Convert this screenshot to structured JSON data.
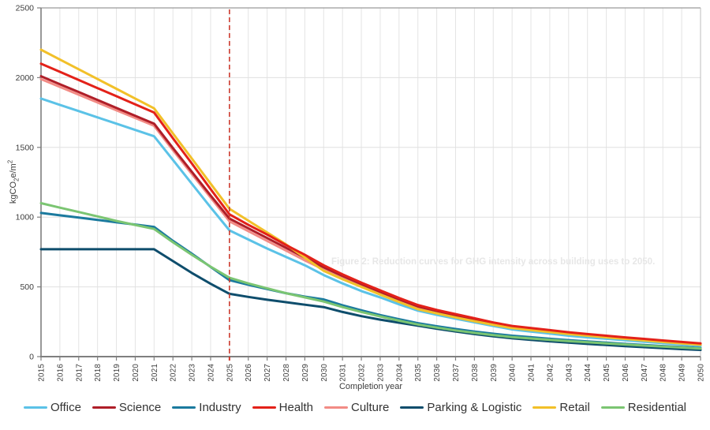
{
  "watermark": "Figure 2: Reduction curves for GHG intensity across building uses to 2050.",
  "chart_data": {
    "type": "line",
    "title": "",
    "xlabel": "Completion year",
    "ylabel": {
      "pre": "kgCO",
      "sub": "2",
      "mid": "e/m",
      "sup": "2"
    },
    "ylim": [
      0,
      2500
    ],
    "yticks": [
      0,
      500,
      1000,
      1500,
      2000,
      2500
    ],
    "grid": true,
    "legend_position": "bottom",
    "reference_line": {
      "x": 2025,
      "color": "#cc3a2d",
      "style": "dashed"
    },
    "axis_colors": {
      "spine": "#7f7f7f",
      "grid": "#e4e4e4",
      "tick_label": "#3d3d3d"
    },
    "x": [
      2015,
      2016,
      2017,
      2018,
      2019,
      2020,
      2021,
      2022,
      2023,
      2024,
      2025,
      2026,
      2027,
      2028,
      2029,
      2030,
      2031,
      2032,
      2033,
      2034,
      2035,
      2036,
      2037,
      2038,
      2039,
      2040,
      2041,
      2042,
      2043,
      2044,
      2045,
      2046,
      2047,
      2048,
      2049,
      2050
    ],
    "series": [
      {
        "name": "Office",
        "color": "#5BC2E7",
        "values": [
          1850,
          1805,
          1760,
          1715,
          1670,
          1625,
          1580,
          1410,
          1240,
          1070,
          905,
          840,
          775,
          715,
          655,
          585,
          525,
          470,
          425,
          375,
          330,
          300,
          272,
          246,
          220,
          195,
          180,
          165,
          150,
          138,
          128,
          117,
          107,
          97,
          88,
          78
        ]
      },
      {
        "name": "Science",
        "color": "#AF1E28",
        "values": [
          2010,
          1953,
          1897,
          1840,
          1783,
          1727,
          1670,
          1495,
          1325,
          1155,
          990,
          920,
          850,
          780,
          710,
          640,
          578,
          520,
          465,
          410,
          360,
          327,
          297,
          268,
          240,
          215,
          200,
          185,
          171,
          158,
          146,
          135,
          124,
          113,
          102,
          92
        ]
      },
      {
        "name": "Industry",
        "color": "#1B7A9E",
        "values": [
          1030,
          1013,
          997,
          980,
          963,
          947,
          930,
          830,
          738,
          643,
          548,
          515,
          485,
          455,
          430,
          410,
          368,
          332,
          298,
          268,
          240,
          218,
          198,
          180,
          164,
          150,
          139,
          128,
          118,
          109,
          100,
          91,
          83,
          76,
          69,
          62
        ]
      },
      {
        "name": "Health",
        "color": "#E32119",
        "values": [
          2100,
          2042,
          1983,
          1925,
          1867,
          1808,
          1750,
          1565,
          1385,
          1200,
          1020,
          945,
          875,
          800,
          730,
          655,
          590,
          530,
          475,
          420,
          370,
          335,
          305,
          275,
          245,
          220,
          205,
          190,
          175,
          162,
          150,
          138,
          127,
          116,
          105,
          95
        ]
      },
      {
        "name": "Culture",
        "color": "#F28B85",
        "values": [
          1990,
          1934,
          1878,
          1822,
          1766,
          1711,
          1655,
          1480,
          1310,
          1140,
          970,
          900,
          830,
          760,
          690,
          625,
          563,
          505,
          450,
          398,
          350,
          318,
          289,
          261,
          234,
          210,
          195,
          181,
          167,
          154,
          142,
          131,
          120,
          109,
          98,
          88
        ]
      },
      {
        "name": "Parking & Logistic",
        "color": "#0E4D6C",
        "values": [
          770,
          770,
          770,
          770,
          770,
          770,
          770,
          685,
          600,
          522,
          450,
          428,
          408,
          390,
          372,
          355,
          320,
          290,
          265,
          243,
          222,
          200,
          180,
          162,
          146,
          132,
          120,
          110,
          100,
          91,
          83,
          75,
          68,
          61,
          54,
          48
        ]
      },
      {
        "name": "Retail",
        "color": "#F2C029",
        "values": [
          2200,
          2130,
          2060,
          1990,
          1920,
          1850,
          1780,
          1600,
          1420,
          1240,
          1060,
          975,
          890,
          805,
          710,
          615,
          555,
          500,
          445,
          392,
          340,
          310,
          281,
          254,
          228,
          205,
          190,
          176,
          162,
          150,
          138,
          127,
          116,
          105,
          95,
          85
        ]
      },
      {
        "name": "Residential",
        "color": "#7BC572",
        "values": [
          1100,
          1068,
          1037,
          1005,
          973,
          944,
          915,
          820,
          730,
          645,
          565,
          525,
          490,
          455,
          425,
          395,
          355,
          320,
          288,
          258,
          230,
          208,
          188,
          170,
          154,
          140,
          130,
          120,
          111,
          103,
          95,
          87,
          79,
          72,
          65,
          58
        ]
      }
    ]
  }
}
